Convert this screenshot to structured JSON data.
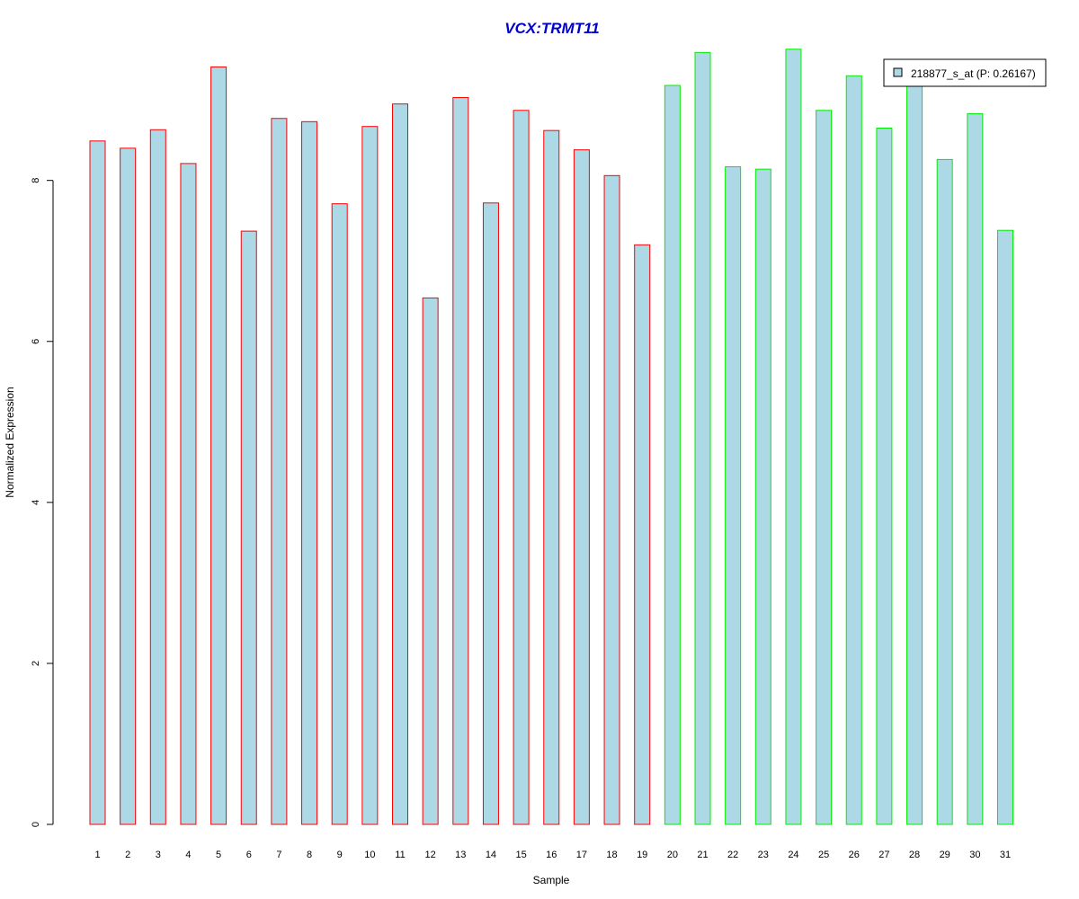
{
  "chart_data": {
    "type": "bar",
    "title": "VCX:TRMT11",
    "xlabel": "Sample",
    "ylabel": "Normalized Expression",
    "ylim": [
      0,
      9.75
    ],
    "yticks": [
      0,
      2,
      4,
      6,
      8
    ],
    "grid": false,
    "legend": {
      "position": "top-right",
      "label": "218877_s_at (P: 0.26167)"
    },
    "categories": [
      "1",
      "2",
      "3",
      "4",
      "5",
      "6",
      "7",
      "8",
      "9",
      "10",
      "11",
      "12",
      "13",
      "14",
      "15",
      "16",
      "17",
      "18",
      "19",
      "20",
      "21",
      "22",
      "23",
      "24",
      "25",
      "26",
      "27",
      "28",
      "29",
      "30",
      "31"
    ],
    "values": [
      8.49,
      8.4,
      8.63,
      8.21,
      9.41,
      7.37,
      8.77,
      8.73,
      7.71,
      8.67,
      8.95,
      6.54,
      9.03,
      7.72,
      8.87,
      8.62,
      8.38,
      8.06,
      7.2,
      9.18,
      9.59,
      8.17,
      8.14,
      9.63,
      8.87,
      9.3,
      8.65,
      9.3,
      8.26,
      8.83,
      7.38
    ],
    "groups": [
      "red",
      "red",
      "red",
      "red",
      "red",
      "red",
      "red",
      "red",
      "red",
      "red",
      "red",
      "red",
      "red",
      "red",
      "red",
      "red",
      "red",
      "red",
      "red",
      "green",
      "green",
      "green",
      "green",
      "green",
      "green",
      "green",
      "green",
      "green",
      "green",
      "green",
      "green"
    ]
  },
  "colors": {
    "title": "#0000cc",
    "bar_fill": "#add8e6",
    "red_border": "#ff0000",
    "green_border": "#00ee00",
    "axis": "#000000"
  }
}
